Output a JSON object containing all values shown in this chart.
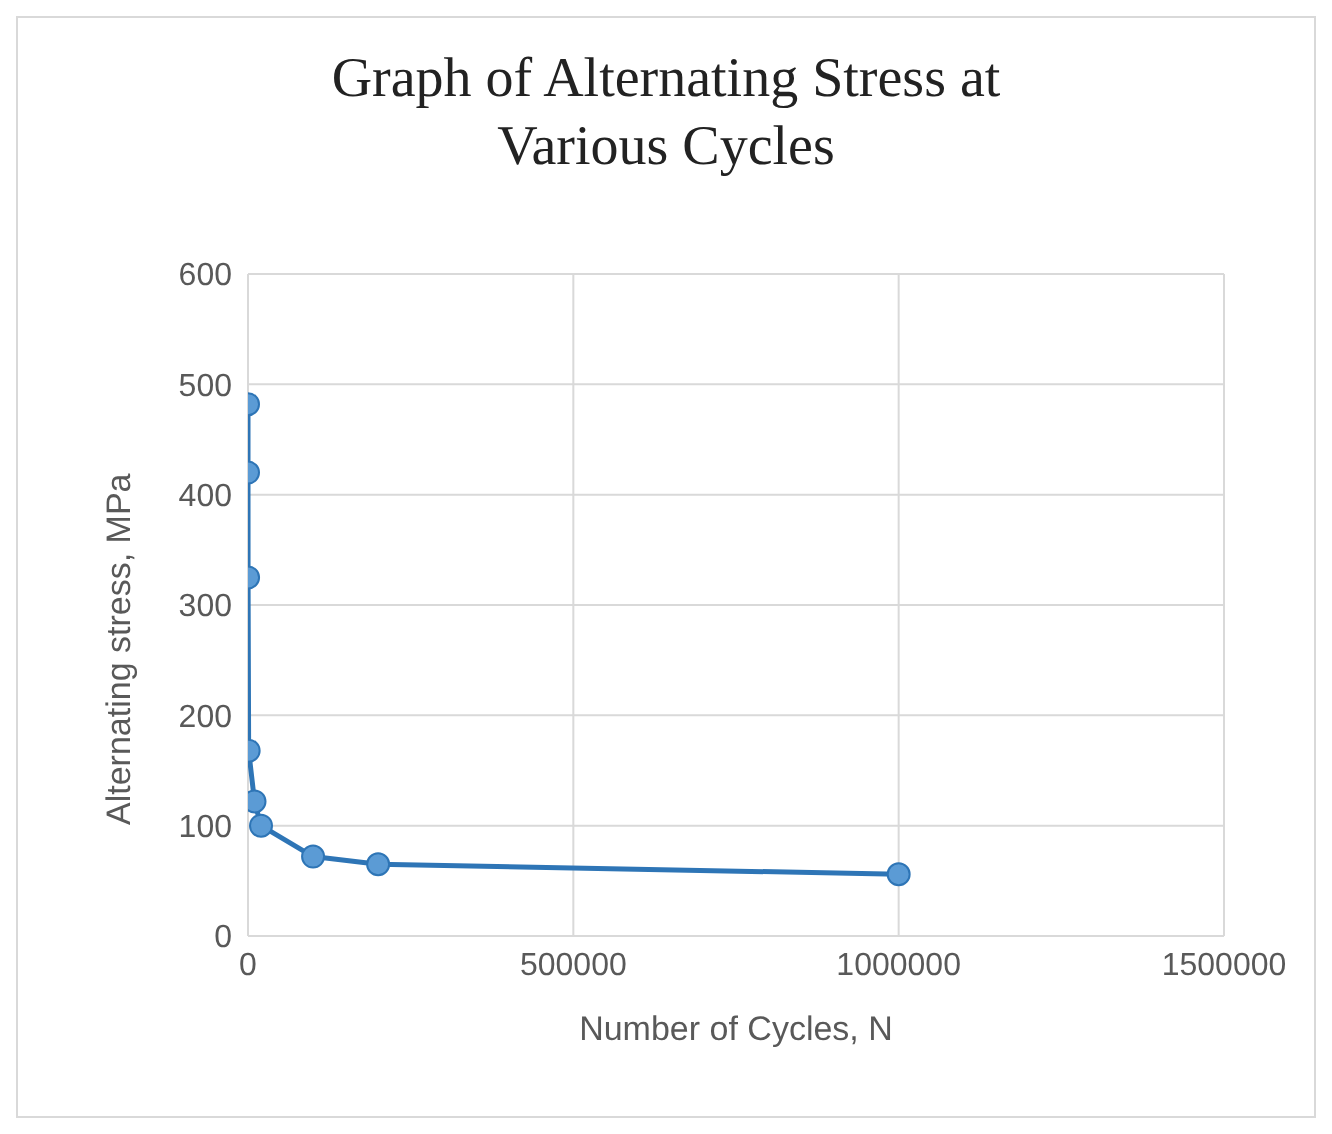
{
  "chart_data": {
    "type": "line",
    "title": "Graph of Alternating Stress at Various Cycles",
    "xlabel": "Number of Cycles, N",
    "ylabel": "Alternating stress, MPa",
    "x": [
      1,
      10,
      100,
      1000,
      10000,
      20000,
      100000,
      200000,
      1000000
    ],
    "series": [
      {
        "color": "#2e75b6",
        "values": [
          482,
          420,
          325,
          168,
          122,
          100,
          72,
          65,
          56
        ]
      }
    ],
    "xlim": [
      0,
      1500000
    ],
    "xticks": [
      0,
      500000,
      1000000,
      1500000
    ],
    "ylim": [
      0,
      600
    ],
    "yticks": [
      0,
      100,
      200,
      300,
      400,
      500,
      600
    ],
    "grid": true,
    "marker": "circle",
    "line_style": "solid",
    "legend": false
  }
}
